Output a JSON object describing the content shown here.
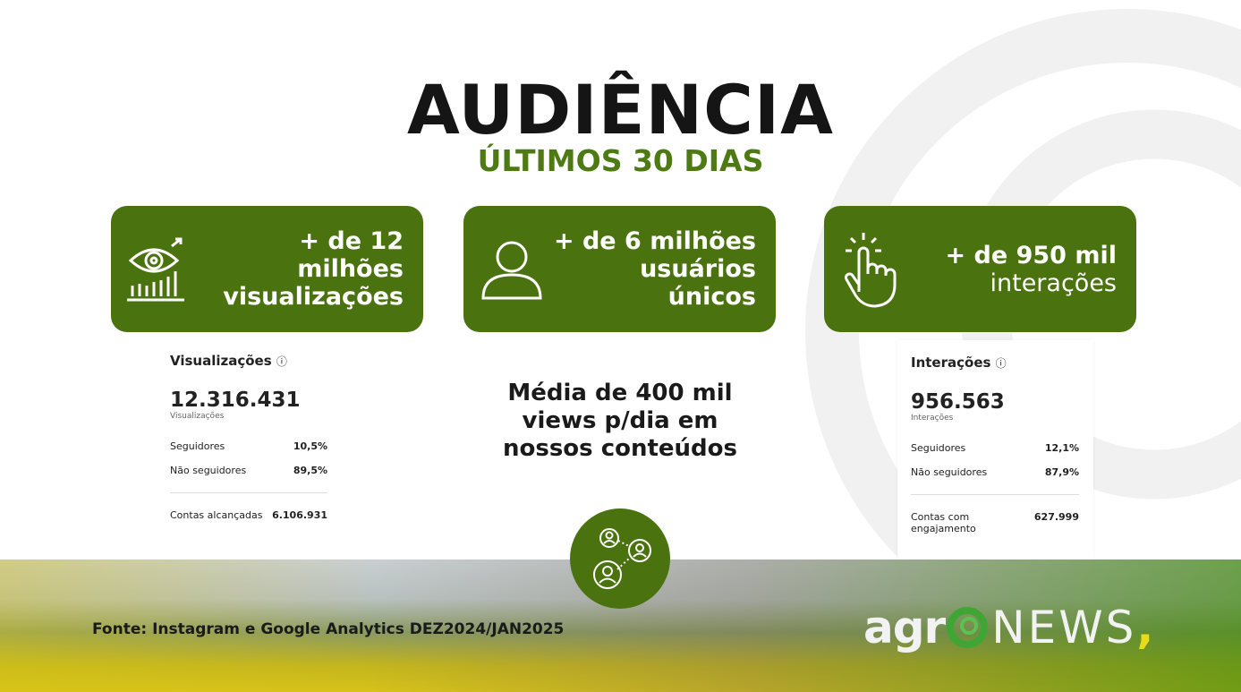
{
  "header": {
    "title": "AUDIÊNCIA",
    "subtitle": "ÚLTIMOS 30 DIAS"
  },
  "colors": {
    "brand_green": "#4a730f",
    "subtitle_green": "#4d7a12"
  },
  "cards": [
    {
      "icon": "eye-chart-icon",
      "line1": "+ de 12 milhões",
      "line2": "visualizações"
    },
    {
      "icon": "user-icon",
      "line1": "+ de 6 milhões",
      "line2": "usuários únicos"
    },
    {
      "icon": "tap-hand-icon",
      "line1": "+ de 950 mil",
      "line2": "interações"
    }
  ],
  "views_panel": {
    "heading": "Visualizações",
    "value": "12.316.431",
    "value_label": "Visualizações",
    "rows": [
      {
        "label": "Seguidores",
        "value": "10,5%"
      },
      {
        "label": "Não seguidores",
        "value": "89,5%"
      }
    ],
    "footer_label": "Contas alcançadas",
    "footer_value": "6.106.931"
  },
  "interactions_panel": {
    "heading": "Interações",
    "value": "956.563",
    "value_label": "Interações",
    "rows": [
      {
        "label": "Seguidores",
        "value": "12,1%"
      },
      {
        "label": "Não seguidores",
        "value": "87,9%"
      }
    ],
    "footer_label": "Contas com engajamento",
    "footer_value": "627.999"
  },
  "center_text": {
    "line1": "Média de 400 mil",
    "line2": "views p/dia em",
    "line3": "nossos conteúdos"
  },
  "footer": {
    "source": "Fonte: Instagram e Google Analytics DEZ2024/JAN2025",
    "logo_agr": "agr",
    "logo_news": "NEWS"
  }
}
